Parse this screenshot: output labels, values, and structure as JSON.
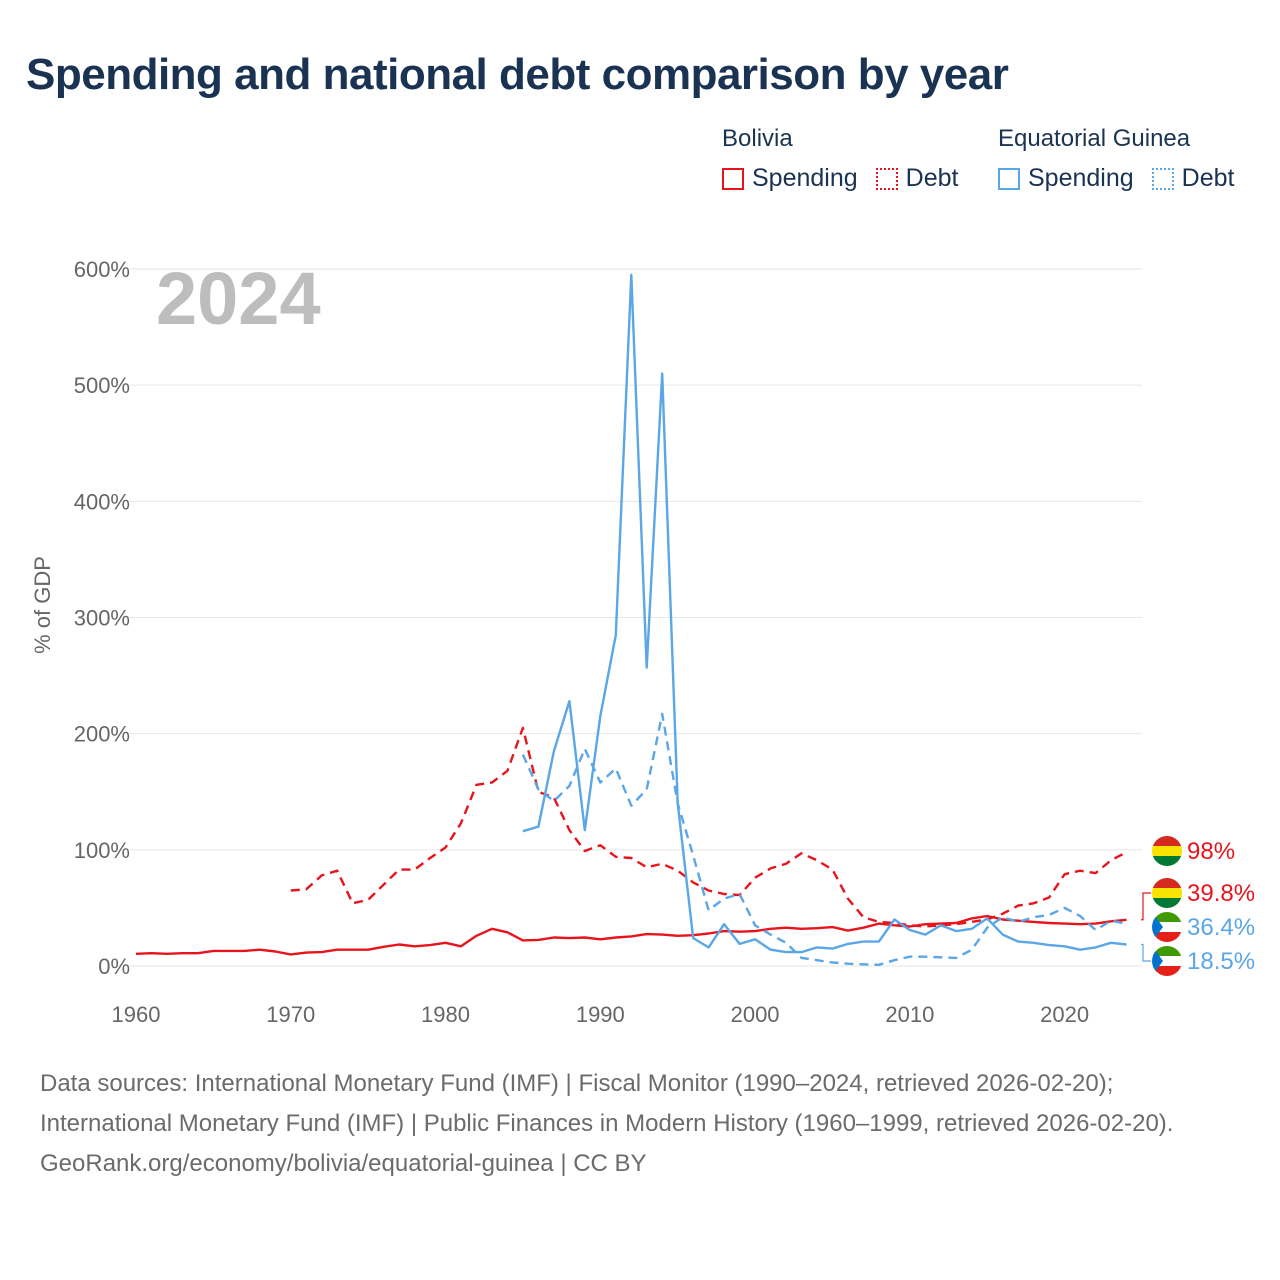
{
  "title": "Spending and national debt comparison by year",
  "legend": {
    "groups": [
      {
        "country": "Bolivia",
        "color": "#e8141c",
        "items": [
          {
            "label": "Spending",
            "style": "solid"
          },
          {
            "label": "Debt",
            "style": "dotted"
          }
        ]
      },
      {
        "country": "Equatorial Guinea",
        "color": "#5aa6e6",
        "items": [
          {
            "label": "Spending",
            "style": "solid"
          },
          {
            "label": "Debt",
            "style": "dotted"
          }
        ]
      }
    ]
  },
  "chart_data": {
    "type": "line",
    "year_label": "2024",
    "ylabel": "% of GDP",
    "xlabel": "",
    "xlim": [
      1960,
      2025
    ],
    "ylim": [
      0,
      600
    ],
    "x_ticks": [
      1960,
      1970,
      1980,
      1990,
      2000,
      2010,
      2020
    ],
    "y_ticks": [
      0,
      100,
      200,
      300,
      400,
      500,
      600
    ],
    "y_tick_labels": [
      "0%",
      "100%",
      "200%",
      "300%",
      "400%",
      "500%",
      "600%"
    ],
    "grid": true,
    "series": [
      {
        "name": "Bolivia Spending",
        "country": "Bolivia",
        "color": "#e8141c",
        "dash": "solid",
        "x": [
          1960,
          1961,
          1962,
          1963,
          1964,
          1965,
          1966,
          1967,
          1968,
          1969,
          1970,
          1971,
          1972,
          1973,
          1974,
          1975,
          1976,
          1977,
          1978,
          1979,
          1980,
          1981,
          1982,
          1983,
          1984,
          1985,
          1986,
          1987,
          1988,
          1989,
          1990,
          1991,
          1992,
          1993,
          1994,
          1995,
          1996,
          1997,
          1998,
          1999,
          2000,
          2001,
          2002,
          2003,
          2004,
          2005,
          2006,
          2007,
          2008,
          2009,
          2010,
          2011,
          2012,
          2013,
          2014,
          2015,
          2016,
          2017,
          2018,
          2019,
          2020,
          2021,
          2022,
          2023,
          2024
        ],
        "values": [
          10.5,
          11,
          10.5,
          11,
          11,
          13,
          13,
          13,
          14,
          12.5,
          10,
          11.5,
          12,
          14,
          14,
          14,
          16.5,
          18.5,
          17,
          18,
          20,
          17,
          26,
          32,
          29,
          22,
          22.5,
          24.5,
          24,
          24.5,
          23,
          24.5,
          25.5,
          27.5,
          27,
          26,
          26.5,
          28,
          30,
          29.5,
          30,
          32,
          33,
          32,
          32.5,
          33.5,
          30.5,
          33,
          36.5,
          35,
          34,
          36,
          36.5,
          37,
          41,
          43,
          40,
          39,
          38,
          37,
          36.5,
          36,
          36.5,
          38.5,
          39.8
        ]
      },
      {
        "name": "Bolivia Debt",
        "country": "Bolivia",
        "color": "#e8141c",
        "dash": "dashed",
        "x": [
          1970,
          1971,
          1972,
          1973,
          1974,
          1975,
          1976,
          1977,
          1978,
          1979,
          1980,
          1981,
          1982,
          1983,
          1984,
          1985,
          1986,
          1987,
          1988,
          1989,
          1990,
          1991,
          1992,
          1993,
          1994,
          1995,
          1996,
          1997,
          1998,
          1999,
          2000,
          2001,
          2002,
          2003,
          2004,
          2005,
          2006,
          2007,
          2008,
          2009,
          2010,
          2011,
          2012,
          2013,
          2014,
          2015,
          2016,
          2017,
          2018,
          2019,
          2020,
          2021,
          2022,
          2023,
          2024
        ],
        "values": [
          65,
          66,
          78,
          82,
          54,
          57,
          70,
          83,
          83,
          93,
          102,
          123,
          156,
          158,
          168,
          205,
          150,
          145,
          117,
          99,
          104,
          94,
          93,
          85,
          88,
          82,
          72,
          65,
          62,
          61,
          76,
          84,
          88,
          97,
          91,
          83,
          58,
          42,
          38,
          37,
          35,
          34,
          35,
          36,
          38,
          40,
          45,
          52,
          54,
          59,
          79,
          82,
          80,
          91,
          98
        ]
      },
      {
        "name": "Equatorial Guinea Spending",
        "country": "Equatorial Guinea",
        "color": "#5aa6e6",
        "dash": "solid",
        "x": [
          1985,
          1986,
          1987,
          1988,
          1989,
          1990,
          1991,
          1992,
          1993,
          1994,
          1995,
          1996,
          1997,
          1998,
          1999,
          2000,
          2001,
          2002,
          2003,
          2004,
          2005,
          2006,
          2007,
          2008,
          2009,
          2010,
          2011,
          2012,
          2013,
          2014,
          2015,
          2016,
          2017,
          2018,
          2019,
          2020,
          2021,
          2022,
          2023,
          2024
        ],
        "values": [
          116,
          120,
          185,
          228,
          117,
          215,
          285,
          595,
          257,
          510,
          140,
          24,
          16,
          36,
          19,
          23,
          14,
          12,
          12,
          16,
          15,
          19,
          21,
          21,
          40,
          31,
          27,
          35,
          30,
          32,
          41,
          27,
          21,
          20,
          18,
          17,
          14,
          16,
          20,
          18.5
        ]
      },
      {
        "name": "Equatorial Guinea Debt",
        "country": "Equatorial Guinea",
        "color": "#5aa6e6",
        "dash": "dashed",
        "x": [
          1985,
          1986,
          1987,
          1988,
          1989,
          1990,
          1991,
          1992,
          1993,
          1994,
          1995,
          1996,
          1997,
          1998,
          1999,
          2000,
          2001,
          2002,
          2003,
          2004,
          2005,
          2006,
          2007,
          2008,
          2009,
          2010,
          2011,
          2012,
          2013,
          2014,
          2015,
          2016,
          2017,
          2018,
          2019,
          2020,
          2021,
          2022,
          2023,
          2024
        ],
        "values": [
          182,
          152,
          142,
          155,
          187,
          158,
          170,
          138,
          152,
          217,
          140,
          95,
          48,
          58,
          62,
          35,
          27,
          20,
          7,
          5,
          3,
          2,
          1.5,
          1,
          5,
          8,
          8,
          7.5,
          7,
          14,
          33,
          42,
          38,
          42,
          44,
          50,
          43,
          31,
          39,
          36.4
        ]
      }
    ],
    "end_labels": [
      {
        "text": "98%",
        "value": 98,
        "color": "#e8141c",
        "flag": "bolivia"
      },
      {
        "text": "39.8%",
        "value": 39.8,
        "color": "#e8141c",
        "flag": "bolivia"
      },
      {
        "text": "36.4%",
        "value": 36.4,
        "color": "#5aa6e6",
        "flag": "equatorial-guinea"
      },
      {
        "text": "18.5%",
        "value": 18.5,
        "color": "#5aa6e6",
        "flag": "equatorial-guinea"
      }
    ]
  },
  "footer": {
    "sources": "Data sources: International Monetary Fund (IMF) | Fiscal Monitor (1990–2024, retrieved 2026-02-20); International Monetary Fund (IMF) | Public Finances in Modern History (1960–1999, retrieved 2026-02-20).",
    "attribution": "GeoRank.org/economy/bolivia/equatorial-guinea | CC BY"
  }
}
